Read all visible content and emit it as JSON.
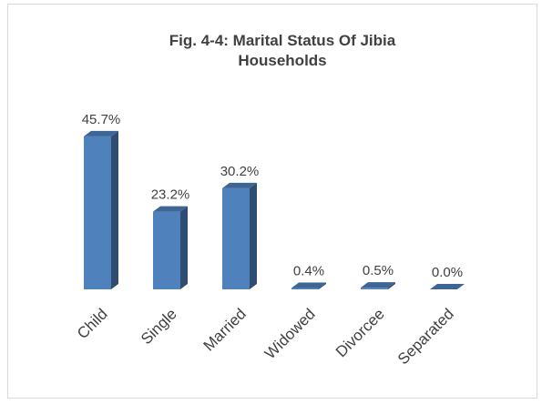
{
  "chart_data": {
    "type": "bar3d",
    "title": "Fig. 4-4: Marital Status Of Jibia Households",
    "categories": [
      "Child",
      "Single",
      "Married",
      "Widowed",
      "Divorcee",
      "Separated"
    ],
    "values": [
      45.7,
      23.2,
      30.2,
      0.4,
      0.5,
      0.0
    ],
    "value_labels": [
      "45.7%",
      "23.2%",
      "30.2%",
      "0.4%",
      "0.5%",
      "0.0%"
    ],
    "color": "#4f81bd"
  }
}
